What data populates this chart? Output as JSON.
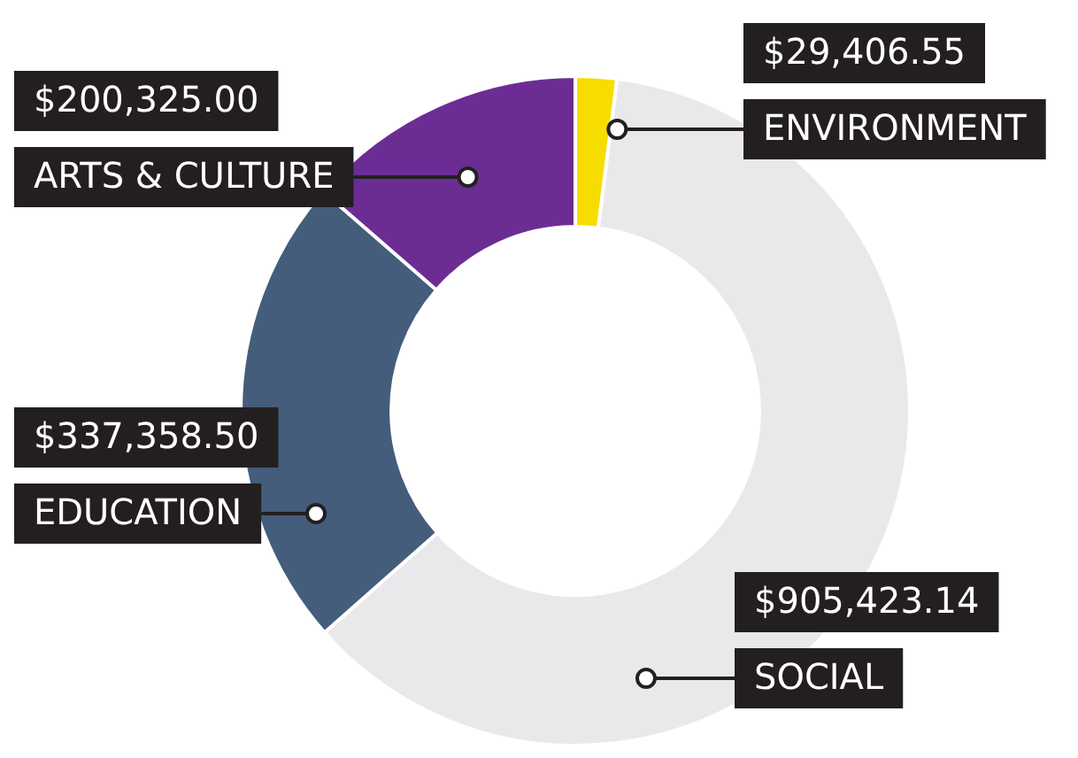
{
  "chart_data": {
    "type": "donut",
    "categories": [
      "ENVIRONMENT",
      "SOCIAL",
      "EDUCATION",
      "ARTS & CULTURE"
    ],
    "values": [
      29406.55,
      905423.14,
      337358.5,
      200325.0
    ],
    "colors": [
      "#f7dc00",
      "#e9e9eb",
      "#435d7b",
      "#6b2d93"
    ],
    "value_labels": [
      "$29,406.55",
      "$905,423.14",
      "$337,358.50",
      "$200,325.00"
    ],
    "legend": false
  }
}
